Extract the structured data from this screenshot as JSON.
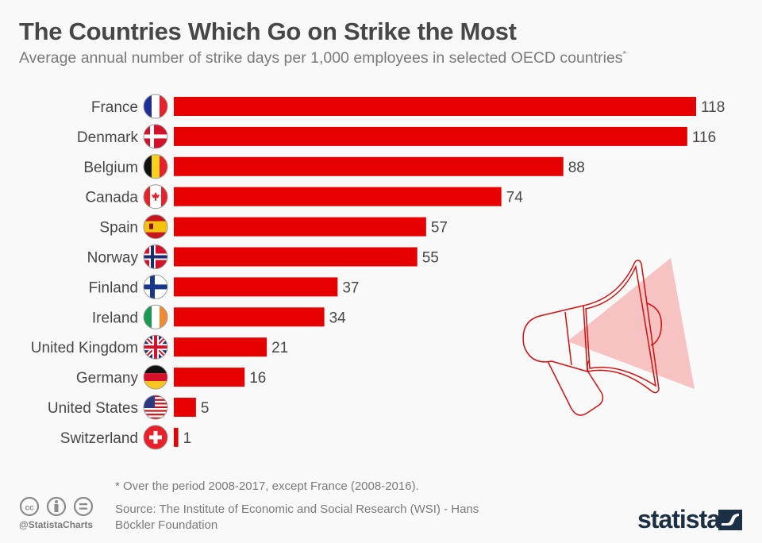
{
  "header": {
    "title": "The Countries Which Go on Strike the Most",
    "subtitle": "Average annual number of strike days per 1,000 employees in selected OECD countries",
    "subtitle_marker": "*"
  },
  "chart_data": {
    "type": "bar",
    "orientation": "horizontal",
    "title": "The Countries Which Go on Strike the Most",
    "subtitle": "Average annual number of strike days per 1,000 employees in selected OECD countries*",
    "xlabel": "",
    "ylabel": "",
    "xlim": [
      0,
      118
    ],
    "grid": false,
    "legend": "none",
    "bar_color": "#e60000",
    "categories": [
      "France",
      "Denmark",
      "Belgium",
      "Canada",
      "Spain",
      "Norway",
      "Finland",
      "Ireland",
      "United Kingdom",
      "Germany",
      "United States",
      "Switzerland"
    ],
    "values": [
      118,
      116,
      88,
      74,
      57,
      55,
      37,
      34,
      21,
      16,
      5,
      1
    ],
    "flag_icons": [
      "france-flag-icon",
      "denmark-flag-icon",
      "belgium-flag-icon",
      "canada-flag-icon",
      "spain-flag-icon",
      "norway-flag-icon",
      "finland-flag-icon",
      "ireland-flag-icon",
      "uk-flag-icon",
      "germany-flag-icon",
      "usa-flag-icon",
      "switzerland-flag-icon"
    ]
  },
  "footer": {
    "note": "* Over the period 2008-2017, except France (2008-2016).",
    "source": "Source: The Institute of Economic and Social Research (WSI) - Hans Böckler Foundation",
    "handle": "@StatistaCharts",
    "brand": "statista",
    "license_icons": [
      "cc-icon",
      "attribution-icon",
      "no-derivatives-icon"
    ]
  },
  "decoration": {
    "icon": "megaphone-icon"
  }
}
